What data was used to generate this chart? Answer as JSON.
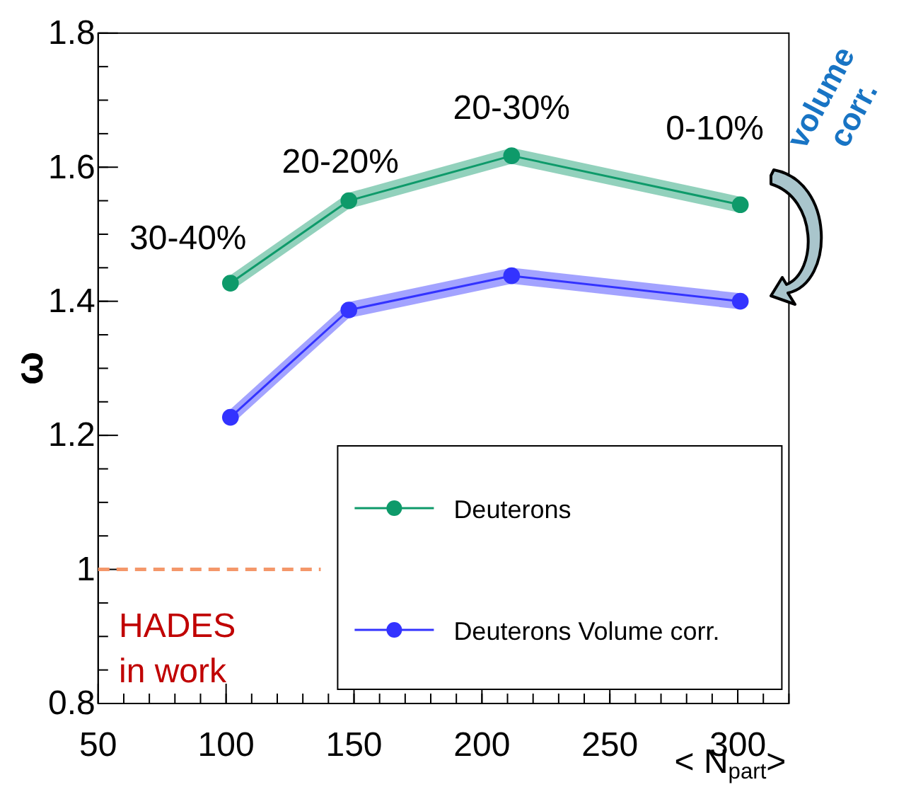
{
  "chart_data": {
    "type": "line",
    "xlabel": "< N$_{part}$>",
    "ylabel": "ω",
    "xlim": [
      50,
      320
    ],
    "xticks": [
      50,
      100,
      150,
      200,
      250,
      300
    ],
    "ylim": [
      0.8,
      1.8
    ],
    "yticks": [
      0.8,
      1,
      1.2,
      1.4,
      1.6,
      1.8
    ],
    "marker": "circle",
    "legend": "bottom right",
    "grid": false,
    "series": [
      {
        "name": "Deuterons",
        "color": "#0e9a6a",
        "x": [
          101.7,
          148,
          211.6,
          301
        ],
        "values": [
          1.427,
          1.55,
          1.617,
          1.544
        ],
        "lower": [
          1.415,
          1.538,
          1.605,
          1.532
        ],
        "upper": [
          1.439,
          1.562,
          1.629,
          1.556
        ]
      },
      {
        "name": "Deuterons Volume corr.",
        "color": "#3333ff",
        "x": [
          101.7,
          148,
          211.6,
          301
        ],
        "values": [
          1.227,
          1.387,
          1.438,
          1.4
        ],
        "lower": [
          1.215,
          1.375,
          1.426,
          1.388
        ],
        "upper": [
          1.239,
          1.399,
          1.45,
          1.412
        ]
      },
      {
        "color": "#f4976a",
        "x": [
          50,
          137
        ],
        "values": [
          1,
          1
        ],
        "marker": "none",
        "line_style": "dashed"
      }
    ],
    "annotations": [
      {
        "text": "30-40%",
        "x": 101.7,
        "y": 1.427
      },
      {
        "text": "20-20%",
        "x": 148,
        "y": 1.55
      },
      {
        "text": "20-30%",
        "x": 211.6,
        "y": 1.617
      },
      {
        "text": "0-10%",
        "x": 301,
        "y": 1.544
      },
      "HADES in work",
      "volume corr."
    ]
  }
}
